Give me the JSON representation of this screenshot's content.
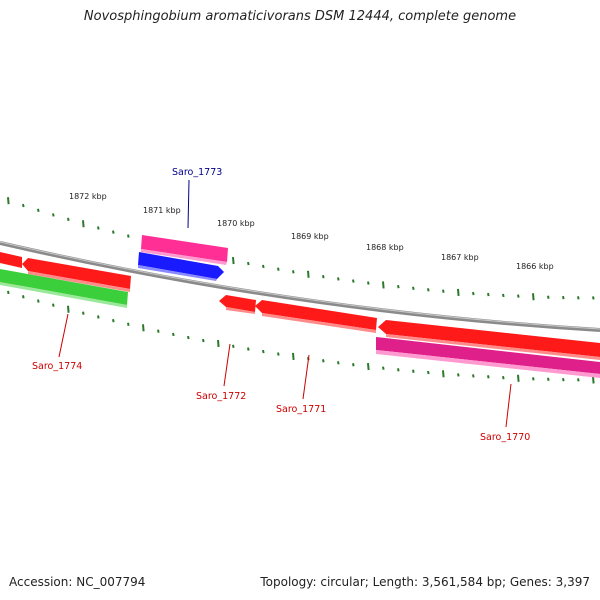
{
  "header": {
    "title": "Novosphingobium aromaticivorans DSM 12444, complete genome"
  },
  "footer": {
    "accession": "Accession: NC_007794",
    "topology": "Topology: circular; Length: 3,561,584 bp; Genes: 3,397"
  },
  "colors": {
    "backbone": "#8a8a8a",
    "tick": "#2b7a2b",
    "gene_red": "#ff1a1a",
    "gene_pink": "#ff2f96",
    "gene_blue": "#1a1aff",
    "gene_green": "#3ccf3c",
    "gene_orange": "#ff9a1a",
    "label_red": "#cc0000",
    "label_blue": "#00008b"
  },
  "scale_labels": [
    "1872 kbp",
    "1871 kbp",
    "1870 kbp",
    "1869 kbp",
    "1868 kbp",
    "1867 kbp",
    "1866 kbp"
  ],
  "gene_labels": [
    {
      "text": "Saro_1773",
      "color": "blue"
    },
    {
      "text": "Saro_1774",
      "color": "red"
    },
    {
      "text": "Saro_1772",
      "color": "red"
    },
    {
      "text": "Saro_1771",
      "color": "red"
    },
    {
      "text": "Saro_1770",
      "color": "red"
    }
  ]
}
